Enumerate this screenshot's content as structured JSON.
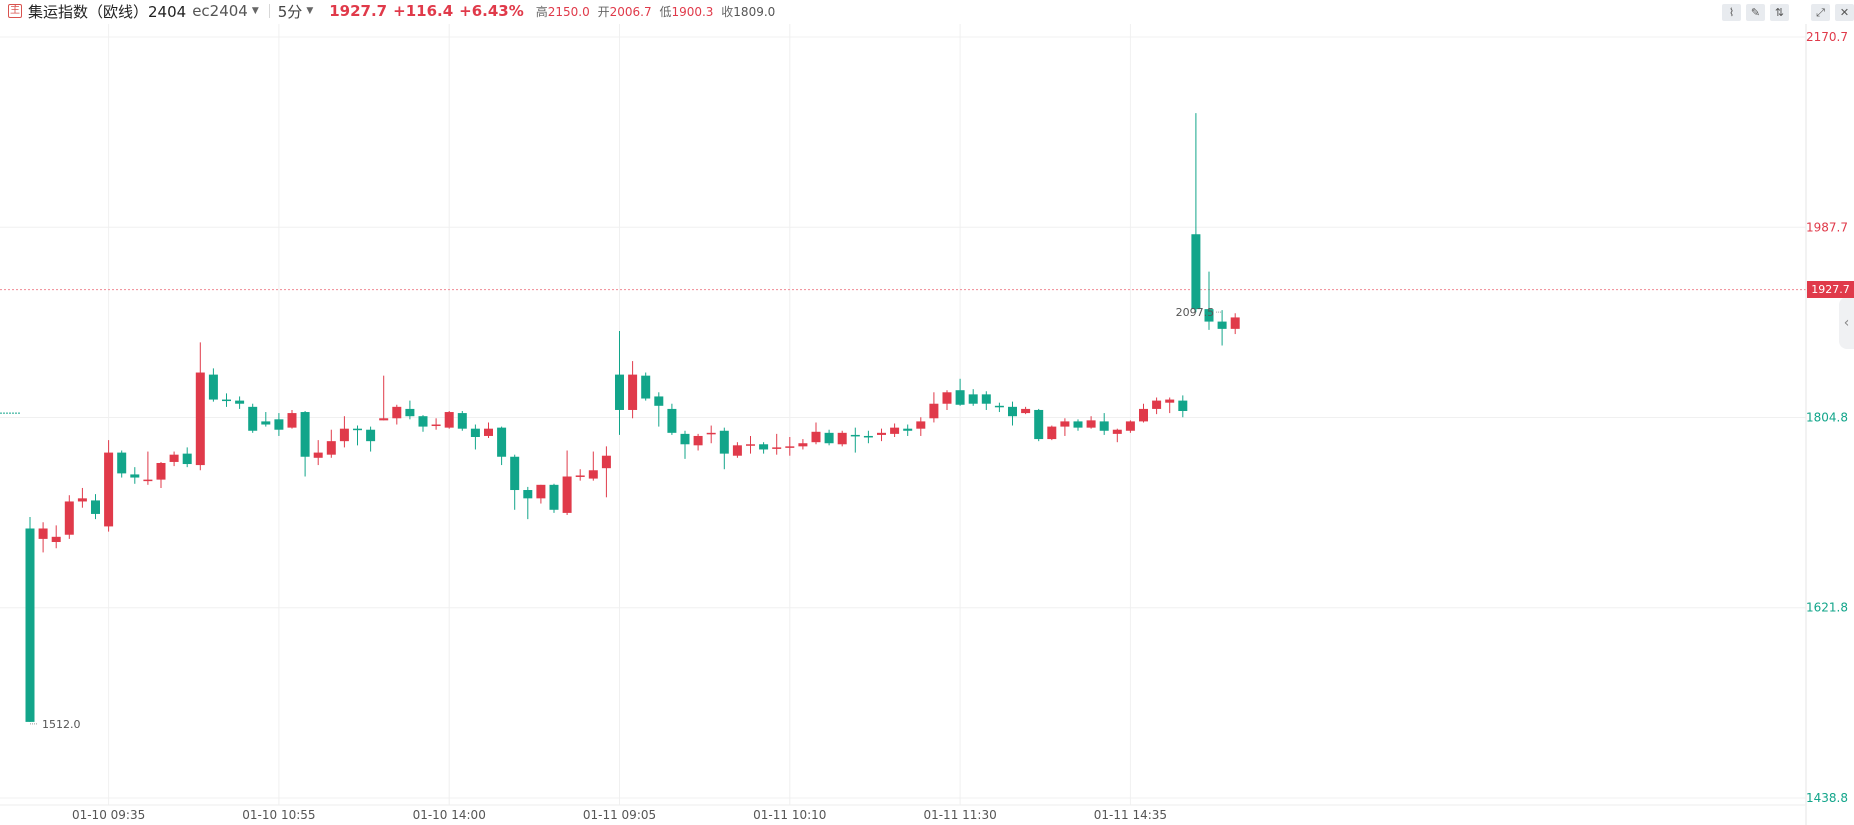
{
  "header": {
    "logo": "主",
    "title": "集运指数（欧线）2404",
    "code": "ec2404",
    "period": "5分",
    "price": "1927.7",
    "change": "+116.4",
    "change_pct": "+6.43%",
    "high_label": "高",
    "high": "2150.0",
    "open_label": "开",
    "open": "2006.7",
    "low_label": "低",
    "low": "1900.3",
    "close_label": "收",
    "close": "1809.0"
  },
  "toolbar": {
    "icons": [
      "line-style-icon",
      "draw-icon",
      "compare-icon",
      "expand-icon",
      "close-icon"
    ]
  },
  "colors": {
    "up": "#e03a4a",
    "down": "#12a58a",
    "grid": "#f0f0f0",
    "axis_text": "#333333"
  },
  "chart_data": {
    "type": "candlestick",
    "y_ticks": [
      {
        "value": 2170.7,
        "label": "2170.7",
        "color": "#e03a4a"
      },
      {
        "value": 1987.7,
        "label": "1987.7",
        "color": "#e03a4a"
      },
      {
        "value": 1804.8,
        "label": "1804.8",
        "color": "#12a58a"
      },
      {
        "value": 1621.8,
        "label": "1621.8",
        "color": "#12a58a"
      },
      {
        "value": 1438.8,
        "label": "1438.8",
        "color": "#12a58a"
      }
    ],
    "ylim": [
      1438.8,
      2170.7
    ],
    "x_ticks": [
      {
        "index": 6,
        "label": "01-10 09:35"
      },
      {
        "index": 19,
        "label": "01-10 10:55"
      },
      {
        "index": 32,
        "label": "01-10 14:00"
      },
      {
        "index": 45,
        "label": "01-11 09:05"
      },
      {
        "index": 58,
        "label": "01-11 10:10"
      },
      {
        "index": 71,
        "label": "01-11 11:30"
      },
      {
        "index": 84,
        "label": "01-11 14:35"
      }
    ],
    "last_price": 1927.7,
    "last_price_label": "1927.7",
    "prev_close": 1809.0,
    "max_label": {
      "index": 91,
      "text": "2097.5"
    },
    "min_label": {
      "index": 0,
      "text": "1512.0"
    },
    "candles": [
      [
        1698,
        1512,
        1512,
        1709
      ],
      [
        1688,
        1698,
        1675,
        1704
      ],
      [
        1685,
        1690,
        1679,
        1701
      ],
      [
        1692,
        1724,
        1688,
        1730
      ],
      [
        1724,
        1727,
        1718,
        1737
      ],
      [
        1725,
        1712,
        1707,
        1731
      ],
      [
        1700,
        1771,
        1695,
        1783
      ],
      [
        1771,
        1751,
        1747,
        1773
      ],
      [
        1750,
        1747,
        1741,
        1757
      ],
      [
        1745,
        1745,
        1740,
        1772
      ],
      [
        1745,
        1761,
        1737,
        1762
      ],
      [
        1762,
        1769,
        1758,
        1772
      ],
      [
        1770,
        1760,
        1757,
        1776
      ],
      [
        1759,
        1848,
        1754,
        1877
      ],
      [
        1846,
        1822,
        1820,
        1852
      ],
      [
        1822,
        1821,
        1815,
        1828
      ],
      [
        1821,
        1818,
        1813,
        1825
      ],
      [
        1815,
        1792,
        1790,
        1818
      ],
      [
        1801,
        1798,
        1796,
        1810
      ],
      [
        1803,
        1793,
        1787,
        1809
      ],
      [
        1795,
        1809,
        1794,
        1812
      ],
      [
        1810,
        1767,
        1748,
        1811
      ],
      [
        1766,
        1771,
        1759,
        1783
      ],
      [
        1769,
        1782,
        1766,
        1793
      ],
      [
        1782,
        1794,
        1776,
        1806
      ],
      [
        1794,
        1793,
        1778,
        1797
      ],
      [
        1793,
        1782,
        1772,
        1796
      ],
      [
        1802,
        1804,
        1802,
        1845
      ],
      [
        1804,
        1815,
        1798,
        1817
      ],
      [
        1813,
        1806,
        1803,
        1821
      ],
      [
        1806,
        1796,
        1791,
        1807
      ],
      [
        1797,
        1798,
        1793,
        1804
      ],
      [
        1795,
        1810,
        1794,
        1811
      ],
      [
        1809,
        1794,
        1792,
        1811
      ],
      [
        1794,
        1786,
        1774,
        1798
      ],
      [
        1787,
        1794,
        1785,
        1800
      ],
      [
        1795,
        1767,
        1759,
        1796
      ],
      [
        1767,
        1735,
        1716,
        1769
      ],
      [
        1735,
        1727,
        1707,
        1738
      ],
      [
        1727,
        1740,
        1722,
        1740
      ],
      [
        1740,
        1716,
        1713,
        1741
      ],
      [
        1713,
        1748,
        1711,
        1773
      ],
      [
        1748,
        1749,
        1744,
        1755
      ],
      [
        1746,
        1754,
        1744,
        1772
      ],
      [
        1756,
        1768,
        1728,
        1777
      ],
      [
        1846,
        1812,
        1788,
        1888
      ],
      [
        1812,
        1846,
        1804,
        1859
      ],
      [
        1845,
        1823,
        1821,
        1848
      ],
      [
        1825,
        1816,
        1796,
        1829
      ],
      [
        1813,
        1790,
        1788,
        1818
      ],
      [
        1789,
        1779,
        1765,
        1792
      ],
      [
        1778,
        1787,
        1773,
        1789
      ],
      [
        1789,
        1790,
        1780,
        1797
      ],
      [
        1792,
        1770,
        1755,
        1795
      ],
      [
        1768,
        1778,
        1766,
        1781
      ],
      [
        1778,
        1779,
        1770,
        1787
      ],
      [
        1779,
        1774,
        1770,
        1781
      ],
      [
        1776,
        1776,
        1769,
        1789
      ],
      [
        1776,
        1777,
        1768,
        1786
      ],
      [
        1777,
        1780,
        1774,
        1784
      ],
      [
        1781,
        1791,
        1779,
        1800
      ],
      [
        1790,
        1780,
        1778,
        1793
      ],
      [
        1779,
        1790,
        1777,
        1792
      ],
      [
        1788,
        1787,
        1771,
        1795
      ],
      [
        1787,
        1786,
        1780,
        1792
      ],
      [
        1788,
        1790,
        1782,
        1794
      ],
      [
        1789,
        1795,
        1786,
        1799
      ],
      [
        1794,
        1792,
        1787,
        1798
      ],
      [
        1794,
        1801,
        1787,
        1805
      ],
      [
        1804,
        1818,
        1800,
        1829
      ],
      [
        1818,
        1829,
        1812,
        1831
      ],
      [
        1831,
        1817,
        1816,
        1842
      ],
      [
        1827,
        1818,
        1816,
        1832
      ],
      [
        1827,
        1818,
        1812,
        1830
      ],
      [
        1816,
        1815,
        1810,
        1819
      ],
      [
        1815,
        1806,
        1797,
        1820
      ],
      [
        1809,
        1813,
        1808,
        1815
      ],
      [
        1812,
        1784,
        1782,
        1813
      ],
      [
        1784,
        1796,
        1783,
        1797
      ],
      [
        1796,
        1801,
        1787,
        1804
      ],
      [
        1801,
        1795,
        1792,
        1803
      ],
      [
        1795,
        1802,
        1794,
        1806
      ],
      [
        1801,
        1792,
        1788,
        1809
      ],
      [
        1789,
        1793,
        1781,
        1794
      ],
      [
        1792,
        1801,
        1790,
        1802
      ],
      [
        1801,
        1813,
        1800,
        1818
      ],
      [
        1813,
        1821,
        1808,
        1824
      ],
      [
        1819,
        1822,
        1809,
        1824
      ],
      [
        1821,
        1811,
        1805,
        1826
      ],
      [
        1981,
        1909,
        1906,
        2097.5
      ],
      [
        1909,
        1897,
        1889,
        1945
      ],
      [
        1897,
        1890,
        1874,
        1908
      ],
      [
        1890,
        1901,
        1885,
        1905
      ]
    ]
  }
}
